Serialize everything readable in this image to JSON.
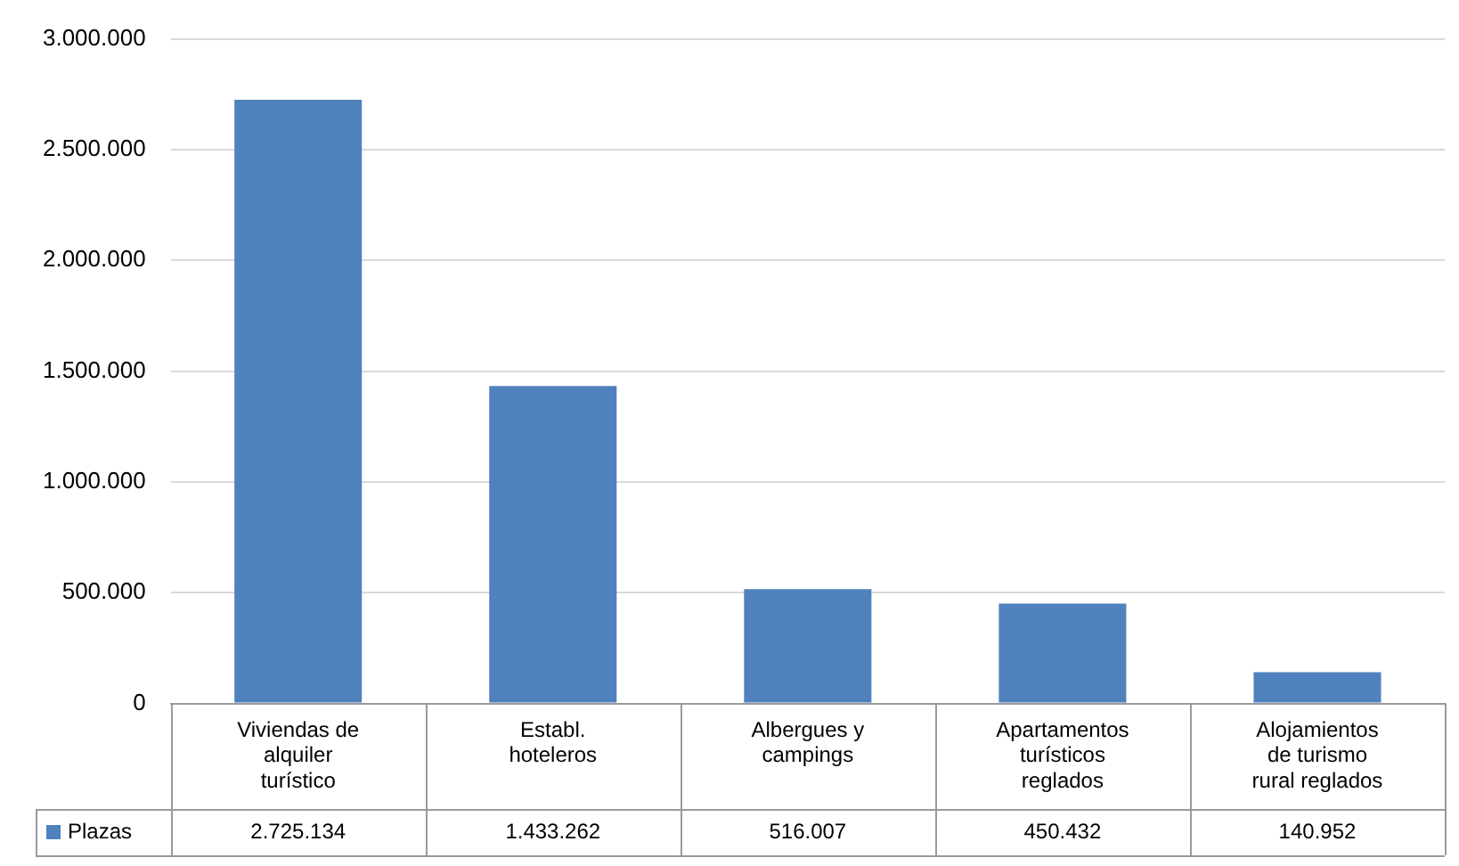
{
  "chart_data": {
    "type": "bar",
    "categories": [
      "Viviendas de alquiler turístico",
      "Establ. hoteleros",
      "Albergues y campings",
      "Apartamentos turísticos reglados",
      "Alojamientos de turismo rural reglados"
    ],
    "series": [
      {
        "name": "Plazas",
        "color": "#4f81bd",
        "values": [
          2725134,
          1433262,
          516007,
          450432,
          140952
        ],
        "value_labels": [
          "2.725.134",
          "1.433.262",
          "516.007",
          "450.432",
          "140.952"
        ]
      }
    ],
    "ylim": [
      0,
      3000000
    ],
    "yticks": [
      0,
      {
        "value": 500000,
        "label": "500.000"
      },
      {
        "value": 1000000,
        "label": "1.000.000"
      },
      {
        "value": 1500000,
        "label": "1.500.000"
      },
      {
        "value": 2000000,
        "label": "2.000.000"
      },
      {
        "value": 2500000,
        "label": "2.500.000"
      },
      {
        "value": 3000000,
        "label": "3.000.000"
      }
    ],
    "grid": "y",
    "legend": "bottom"
  }
}
